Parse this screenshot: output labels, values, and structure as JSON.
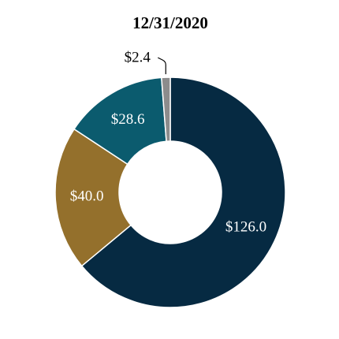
{
  "chart_data": {
    "type": "donut",
    "title": "12/31/2020",
    "categories": [
      null,
      null,
      null,
      null
    ],
    "values": [
      126.0,
      40.0,
      28.6,
      2.4
    ],
    "value_labels": [
      "$126.0",
      "$40.0",
      "$28.6",
      "$2.4"
    ],
    "colors": [
      "#062a42",
      "#94702c",
      "#0b5b6e",
      "#8c8c8c"
    ]
  }
}
